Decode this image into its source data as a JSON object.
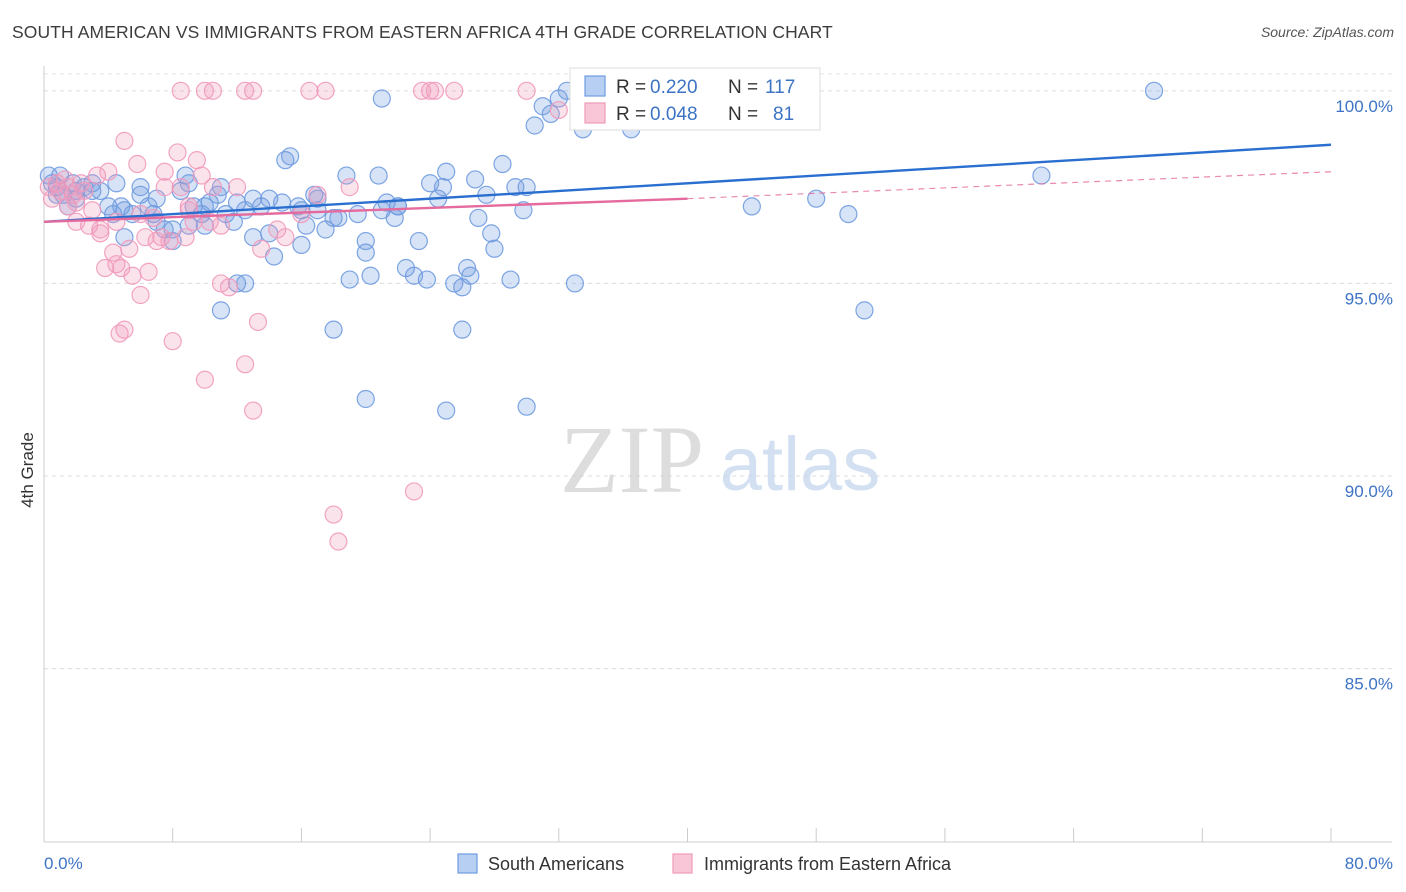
{
  "header": {
    "title": "SOUTH AMERICAN VS IMMIGRANTS FROM EASTERN AFRICA 4TH GRADE CORRELATION CHART",
    "source": "Source: ZipAtlas.com"
  },
  "watermark": {
    "zip": "ZIP",
    "atlas": "atlas"
  },
  "chart_data": {
    "type": "scatter",
    "ylabel": "4th Grade",
    "xlim": [
      0,
      80
    ],
    "ylim": [
      80.5,
      100.8
    ],
    "x_tick_labels": [
      {
        "value": 0,
        "label": "0.0%"
      },
      {
        "value": 80,
        "label": "80.0%"
      }
    ],
    "y_ticks": [
      {
        "value": 100,
        "label": "100.0%"
      },
      {
        "value": 95,
        "label": "95.0%"
      },
      {
        "value": 90,
        "label": "90.0%"
      },
      {
        "value": 85,
        "label": "85.0%"
      }
    ],
    "legend": [
      {
        "r_label": "R =",
        "r_value": "0.220",
        "n_label": "N =",
        "n_value": "117"
      },
      {
        "r_label": "R =",
        "r_value": "0.048",
        "n_label": "N =",
        "n_value": "81"
      }
    ],
    "series": [
      {
        "name": "South Americans",
        "color": "#6f9be0",
        "line_color": "#2a6fcf",
        "trend": {
          "x": [
            0,
            80
          ],
          "y": [
            96.6,
            98.6
          ]
        },
        "points": [
          [
            0.3,
            97.8
          ],
          [
            0.5,
            97.6
          ],
          [
            0.8,
            97.5
          ],
          [
            1.2,
            97.3
          ],
          [
            1.5,
            97.0
          ],
          [
            1.8,
            97.6
          ],
          [
            2.0,
            97.4
          ],
          [
            2.5,
            97.5
          ],
          [
            3.0,
            97.6
          ],
          [
            3.5,
            97.4
          ],
          [
            4.0,
            97.0
          ],
          [
            4.3,
            96.8
          ],
          [
            4.8,
            97.0
          ],
          [
            5.0,
            96.9
          ],
          [
            5.5,
            96.8
          ],
          [
            6.0,
            97.3
          ],
          [
            6.5,
            97.0
          ],
          [
            6.8,
            96.8
          ],
          [
            7.0,
            96.6
          ],
          [
            7.5,
            96.4
          ],
          [
            8.0,
            96.1
          ],
          [
            8.5,
            97.4
          ],
          [
            8.8,
            97.8
          ],
          [
            9.0,
            97.6
          ],
          [
            9.3,
            97.0
          ],
          [
            9.8,
            96.8
          ],
          [
            10.0,
            96.5
          ],
          [
            10.3,
            97.1
          ],
          [
            10.8,
            97.3
          ],
          [
            11.0,
            97.5
          ],
          [
            11.3,
            96.8
          ],
          [
            11.8,
            96.6
          ],
          [
            12.0,
            97.1
          ],
          [
            12.5,
            96.9
          ],
          [
            13.0,
            97.2
          ],
          [
            13.5,
            97.0
          ],
          [
            14.0,
            96.3
          ],
          [
            14.3,
            95.7
          ],
          [
            14.8,
            97.1
          ],
          [
            15.0,
            98.2
          ],
          [
            15.3,
            98.3
          ],
          [
            15.8,
            97.0
          ],
          [
            16.0,
            96.9
          ],
          [
            16.3,
            96.5
          ],
          [
            16.8,
            97.3
          ],
          [
            17.0,
            97.2
          ],
          [
            17.5,
            96.4
          ],
          [
            18.0,
            96.7
          ],
          [
            18.3,
            96.7
          ],
          [
            18.8,
            97.8
          ],
          [
            19.0,
            95.1
          ],
          [
            19.5,
            96.8
          ],
          [
            20.0,
            96.1
          ],
          [
            20.3,
            95.2
          ],
          [
            20.8,
            97.8
          ],
          [
            21.0,
            96.9
          ],
          [
            21.3,
            97.1
          ],
          [
            21.8,
            96.7
          ],
          [
            22.0,
            97.0
          ],
          [
            22.5,
            95.4
          ],
          [
            23.0,
            95.2
          ],
          [
            23.3,
            96.1
          ],
          [
            23.8,
            95.1
          ],
          [
            24.0,
            97.6
          ],
          [
            24.5,
            97.2
          ],
          [
            24.8,
            97.5
          ],
          [
            25.0,
            97.9
          ],
          [
            25.5,
            95.0
          ],
          [
            26.0,
            94.9
          ],
          [
            26.3,
            95.4
          ],
          [
            26.8,
            97.7
          ],
          [
            27.0,
            96.7
          ],
          [
            27.5,
            97.3
          ],
          [
            27.8,
            96.3
          ],
          [
            28.0,
            95.9
          ],
          [
            28.5,
            98.1
          ],
          [
            29.0,
            95.1
          ],
          [
            29.3,
            97.5
          ],
          [
            29.8,
            96.9
          ],
          [
            30.0,
            97.5
          ],
          [
            30.5,
            99.1
          ],
          [
            31.0,
            99.6
          ],
          [
            31.5,
            99.4
          ],
          [
            32.0,
            99.8
          ],
          [
            32.5,
            100.0
          ],
          [
            33.0,
            95.0
          ],
          [
            33.5,
            99.0
          ],
          [
            34.0,
            99.6
          ],
          [
            35.0,
            100.0
          ],
          [
            35.5,
            99.3
          ],
          [
            36.0,
            99.4
          ],
          [
            36.5,
            99.0
          ],
          [
            37.0,
            100.0
          ],
          [
            38.0,
            99.7
          ],
          [
            10.0,
            97.0
          ],
          [
            12.0,
            95.0
          ],
          [
            16.0,
            96.0
          ],
          [
            20.0,
            95.8
          ],
          [
            22.0,
            97.0
          ],
          [
            26.0,
            93.8
          ],
          [
            18.0,
            93.8
          ],
          [
            20.0,
            92.0
          ],
          [
            25.0,
            91.7
          ],
          [
            11.0,
            94.3
          ],
          [
            14.0,
            97.2
          ],
          [
            8.0,
            96.4
          ],
          [
            13.0,
            96.2
          ],
          [
            6.0,
            97.5
          ],
          [
            5.0,
            96.2
          ],
          [
            3.0,
            97.4
          ],
          [
            2.0,
            97.2
          ],
          [
            1.0,
            97.8
          ],
          [
            0.8,
            97.3
          ],
          [
            44.0,
            97.0
          ],
          [
            48.0,
            97.2
          ],
          [
            50.0,
            96.8
          ],
          [
            51.0,
            94.3
          ],
          [
            62.0,
            97.8
          ],
          [
            69.0,
            100.0
          ],
          [
            26.5,
            95.2
          ],
          [
            21.0,
            99.8
          ],
          [
            9.0,
            96.5
          ],
          [
            17.0,
            96.9
          ],
          [
            30.0,
            91.8
          ],
          [
            12.5,
            95.0
          ],
          [
            7.0,
            97.2
          ],
          [
            4.5,
            97.6
          ]
        ]
      },
      {
        "name": "Immigrants from Eastern Africa",
        "color": "#f19abb",
        "line_color": "#e56a9d",
        "trend": {
          "x": [
            0,
            40
          ],
          "y": [
            96.6,
            97.2
          ]
        },
        "trend_ext": {
          "x": [
            40,
            80
          ],
          "y": [
            97.2,
            97.9
          ]
        },
        "points": [
          [
            0.3,
            97.5
          ],
          [
            0.5,
            97.2
          ],
          [
            0.8,
            97.6
          ],
          [
            1.0,
            97.4
          ],
          [
            1.3,
            97.7
          ],
          [
            1.5,
            97.5
          ],
          [
            1.8,
            97.3
          ],
          [
            2.0,
            97.1
          ],
          [
            2.3,
            97.6
          ],
          [
            2.5,
            97.4
          ],
          [
            2.8,
            96.5
          ],
          [
            3.0,
            96.9
          ],
          [
            3.3,
            97.8
          ],
          [
            3.5,
            96.3
          ],
          [
            3.8,
            95.4
          ],
          [
            4.0,
            97.9
          ],
          [
            4.3,
            95.8
          ],
          [
            4.5,
            96.6
          ],
          [
            4.8,
            95.4
          ],
          [
            5.0,
            98.7
          ],
          [
            5.3,
            95.9
          ],
          [
            5.5,
            95.2
          ],
          [
            5.8,
            98.1
          ],
          [
            6.0,
            94.7
          ],
          [
            6.3,
            96.2
          ],
          [
            6.5,
            95.3
          ],
          [
            6.8,
            96.7
          ],
          [
            7.0,
            96.1
          ],
          [
            7.3,
            96.2
          ],
          [
            7.5,
            97.9
          ],
          [
            7.8,
            96.1
          ],
          [
            8.0,
            93.5
          ],
          [
            8.3,
            98.4
          ],
          [
            8.5,
            97.5
          ],
          [
            8.8,
            96.2
          ],
          [
            9.0,
            97.0
          ],
          [
            9.3,
            96.6
          ],
          [
            9.5,
            98.2
          ],
          [
            9.8,
            97.8
          ],
          [
            10.0,
            92.5
          ],
          [
            10.3,
            96.6
          ],
          [
            10.5,
            97.5
          ],
          [
            11.0,
            95.0
          ],
          [
            11.5,
            94.9
          ],
          [
            12.0,
            97.5
          ],
          [
            12.5,
            92.9
          ],
          [
            13.0,
            91.7
          ],
          [
            13.3,
            94.0
          ],
          [
            13.5,
            95.9
          ],
          [
            14.5,
            96.4
          ],
          [
            15.0,
            96.2
          ],
          [
            16.0,
            96.8
          ],
          [
            17.0,
            97.3
          ],
          [
            18.0,
            89.0
          ],
          [
            18.3,
            88.3
          ],
          [
            19.0,
            97.5
          ],
          [
            23.0,
            89.6
          ],
          [
            23.5,
            100.0
          ],
          [
            24.0,
            100.0
          ],
          [
            24.3,
            100.0
          ],
          [
            25.5,
            100.0
          ],
          [
            30.0,
            100.0
          ],
          [
            32.0,
            99.5
          ],
          [
            35.0,
            100.0
          ],
          [
            16.5,
            100.0
          ],
          [
            17.5,
            100.0
          ],
          [
            13.0,
            100.0
          ],
          [
            12.5,
            100.0
          ],
          [
            10.5,
            100.0
          ],
          [
            10.0,
            100.0
          ],
          [
            8.5,
            100.0
          ],
          [
            2.0,
            96.6
          ],
          [
            3.5,
            96.4
          ],
          [
            4.5,
            95.5
          ],
          [
            6.0,
            96.8
          ],
          [
            9.0,
            96.9
          ],
          [
            11.0,
            96.5
          ],
          [
            5.0,
            93.8
          ],
          [
            4.7,
            93.7
          ],
          [
            1.5,
            97.0
          ],
          [
            7.5,
            97.5
          ]
        ]
      }
    ]
  }
}
